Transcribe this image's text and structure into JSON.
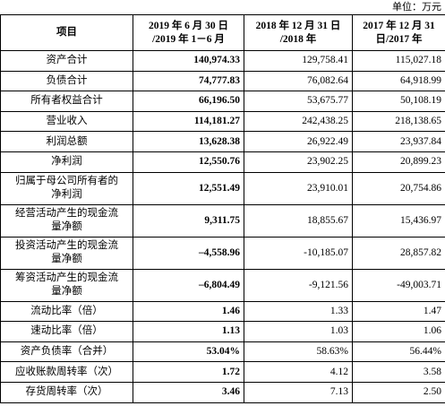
{
  "header": {
    "unit": "单位：万元"
  },
  "table": {
    "columns": [
      "项目",
      "2019 年 6 月 30 日\n/2019 年 1－6 月",
      "2018 年 12 月 31 日\n/2018 年",
      "2017 年 12 月 31\n日/2017 年"
    ],
    "rows": [
      [
        "资产合计",
        "140,974.33",
        "129,758.41",
        "115,027.18"
      ],
      [
        "负债合计",
        "74,777.83",
        "76,082.64",
        "64,918.99"
      ],
      [
        "所有者权益合计",
        "66,196.50",
        "53,675.77",
        "50,108.19"
      ],
      [
        "营业收入",
        "114,181.27",
        "242,438.25",
        "218,138.65"
      ],
      [
        "利润总额",
        "13,628.38",
        "26,922.49",
        "23,937.84"
      ],
      [
        "净利润",
        "12,550.76",
        "23,902.25",
        "20,899.23"
      ],
      [
        "归属于母公司所有者的\n净利润",
        "12,551.49",
        "23,910.01",
        "20,754.86"
      ],
      [
        "经营活动产生的现金流\n量净额",
        "9,311.75",
        "18,855.67",
        "15,436.97"
      ],
      [
        "投资活动产生的现金流\n量净额",
        "–4,558.96",
        "-10,185.07",
        "28,857.82"
      ],
      [
        "筹资活动产生的现金流\n量净额",
        "–6,804.49",
        "-9,121.56",
        "-49,003.71"
      ],
      [
        "流动比率（倍）",
        "1.46",
        "1.33",
        "1.47"
      ],
      [
        "速动比率（倍）",
        "1.13",
        "1.03",
        "1.06"
      ],
      [
        "资产负债率（合并）",
        "53.04%",
        "58.63%",
        "56.44%"
      ],
      [
        "应收账款周转率（次）",
        "1.72",
        "4.12",
        "3.58"
      ],
      [
        "存货周转率（次）",
        "3.46",
        "7.13",
        "2.50"
      ]
    ]
  }
}
